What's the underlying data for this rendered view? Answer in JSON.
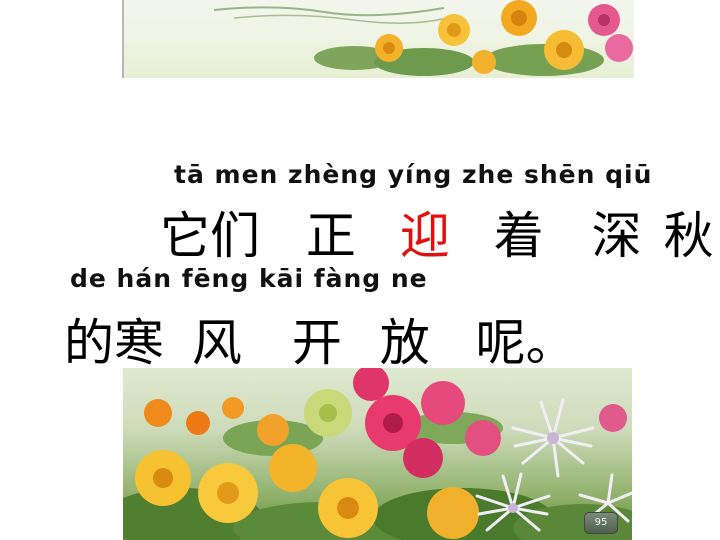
{
  "pinyin_line_1": "tā men zhèng yíng zhe shēn qiū",
  "hanzi_line_1": {
    "w1": "它们",
    "w2": "正",
    "w3": "迎",
    "w4": "着",
    "w5": "深",
    "w6": "秋"
  },
  "pinyin_line_2": "de hán fēng kāi fàng  ne",
  "hanzi_line_2": {
    "w1": "的寒",
    "w2": "风",
    "w3": "开",
    "w4": "放",
    "w5": "呢。"
  },
  "page_number": "95",
  "colors": {
    "highlight": "#e01010",
    "text": "#000000"
  }
}
